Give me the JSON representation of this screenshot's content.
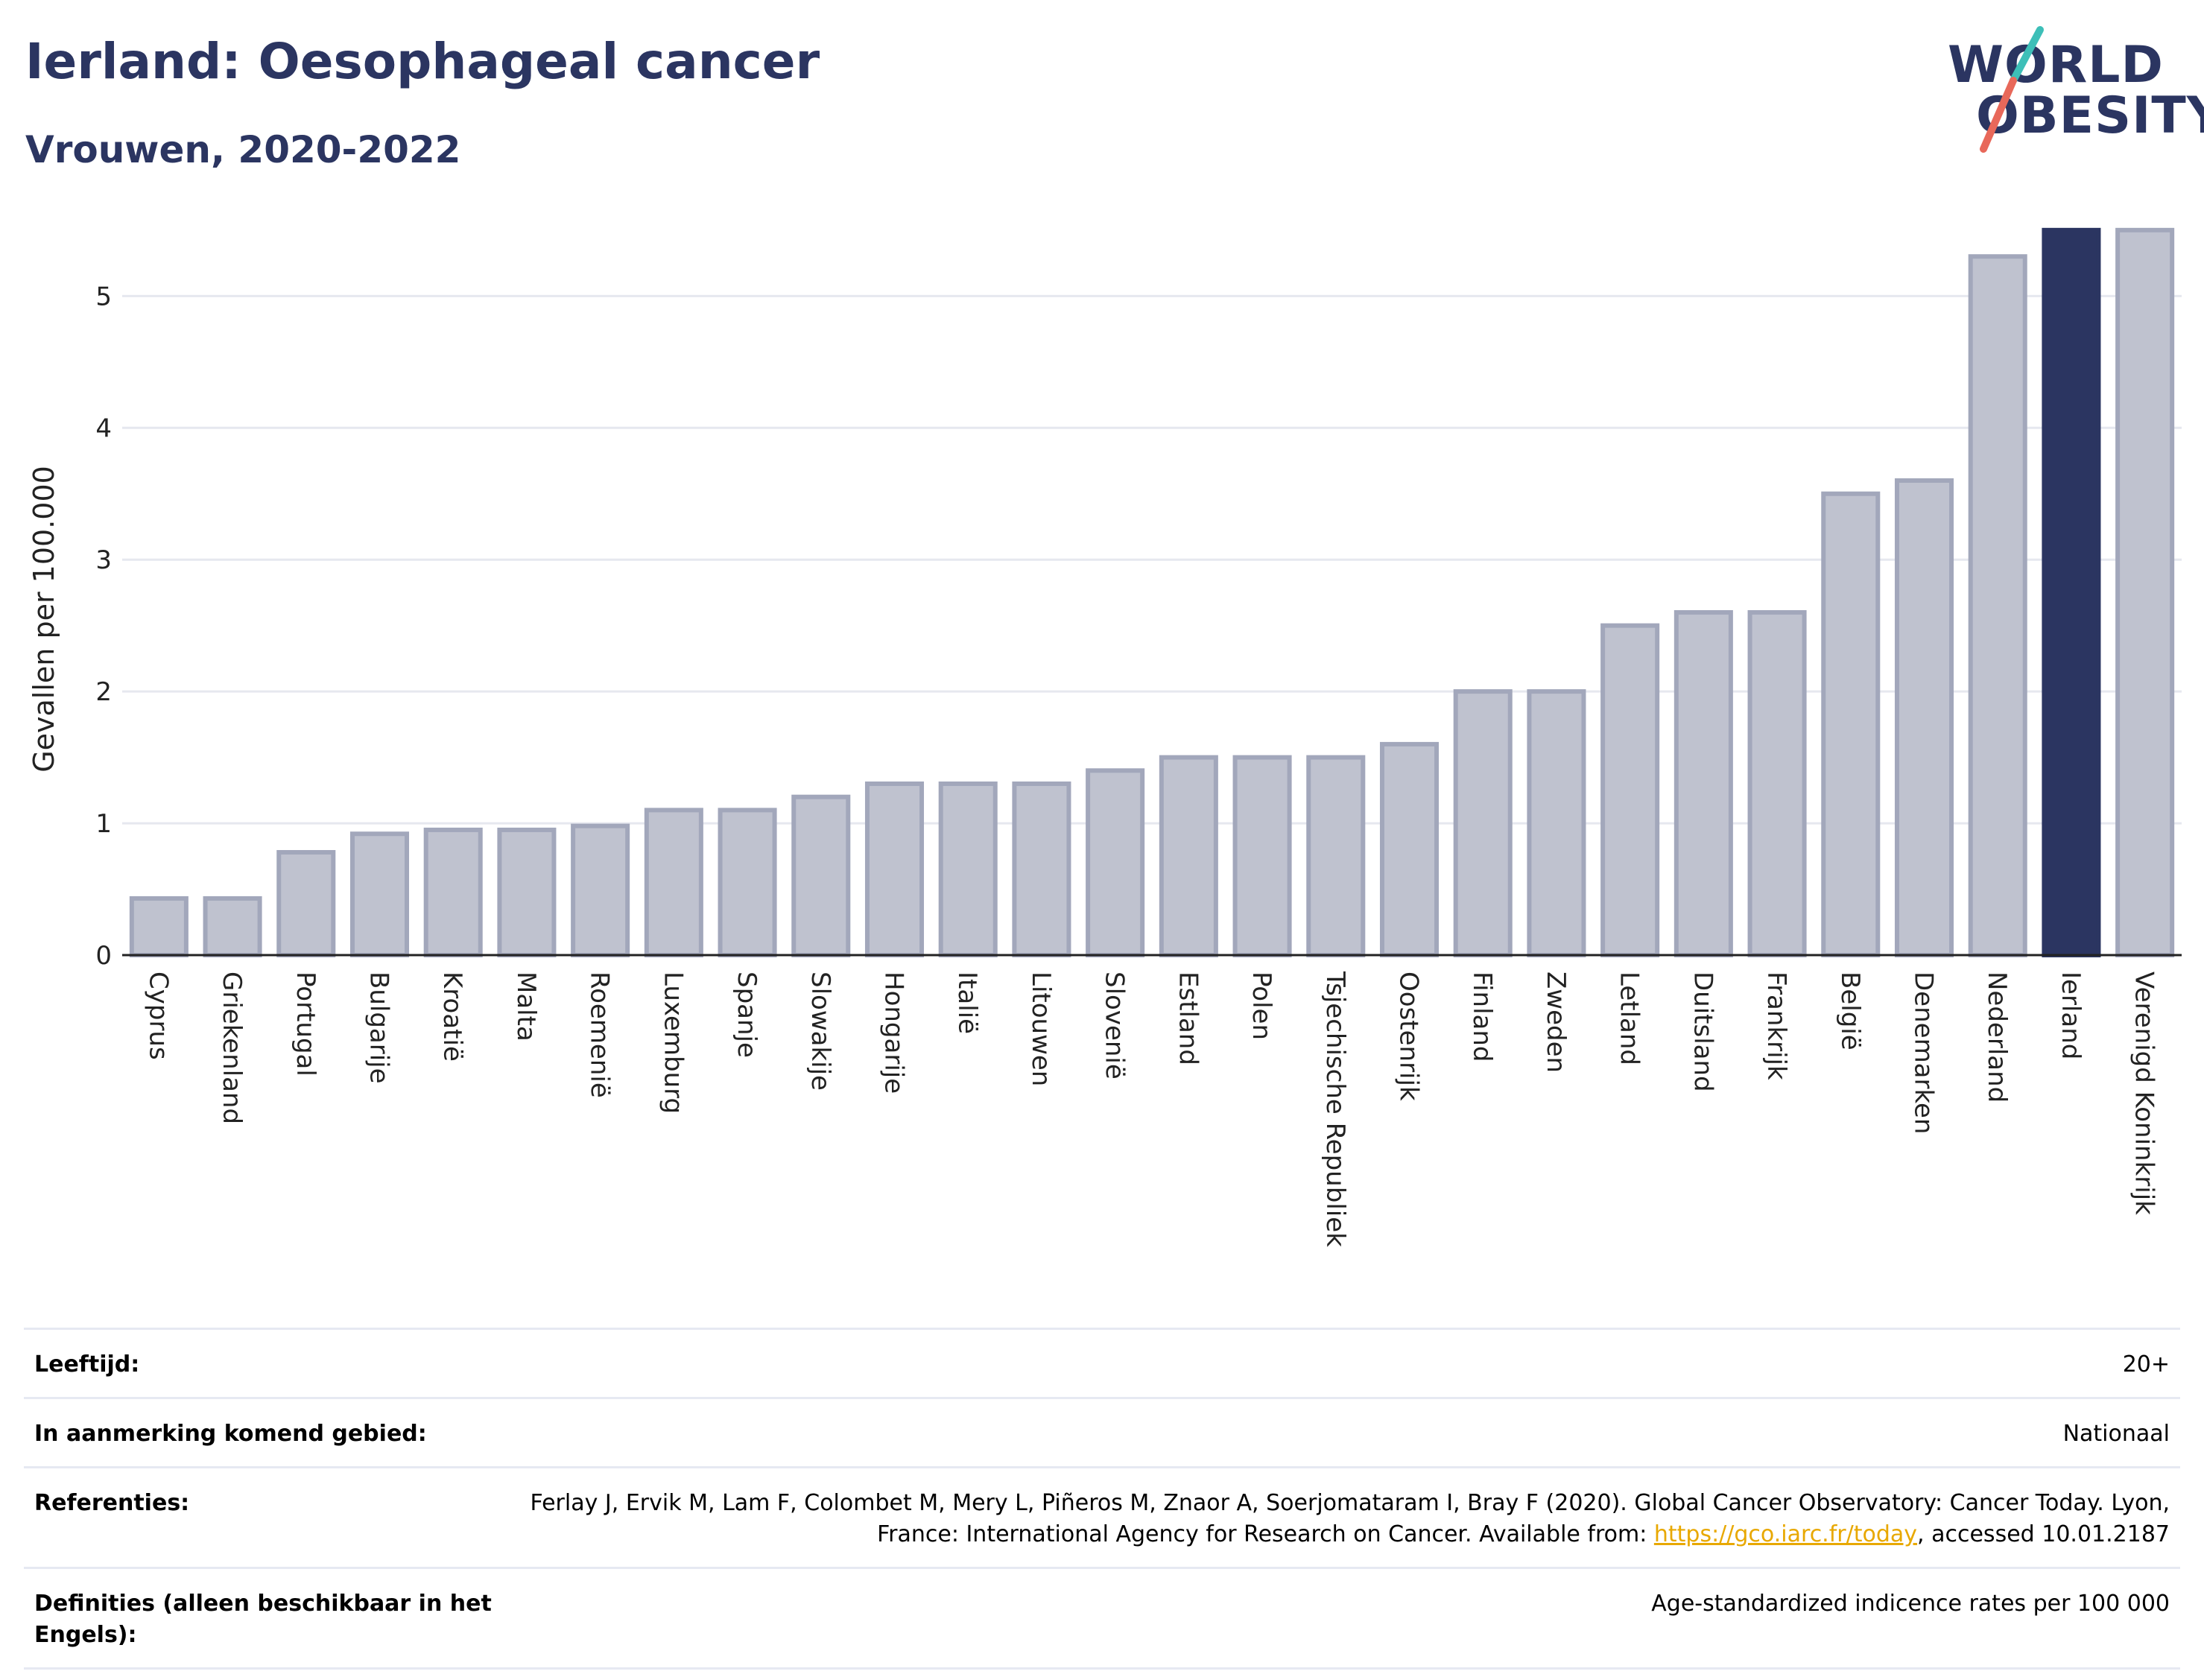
{
  "title": "Ierland: Oesophageal cancer",
  "subtitle": "Vrouwen, 2020-2022",
  "logo": {
    "line1": "WORLD",
    "line2": "OBESITY",
    "colors": {
      "text": "#2b3561",
      "slash_top": "#3dbfb8",
      "slash_bottom": "#e8685a"
    }
  },
  "chart_data": {
    "type": "bar",
    "ylabel": "Gevallen per 100.000",
    "xlabel": "",
    "ylim": [
      0,
      5.55
    ],
    "yticks": [
      0,
      1,
      2,
      3,
      4,
      5
    ],
    "grid": true,
    "highlight": "Ierland",
    "colors": {
      "default_fill": "#bfc2cf",
      "default_stroke": "#a2a7bb",
      "highlight": "#2b3561"
    },
    "categories": [
      "Cyprus",
      "Griekenland",
      "Portugal",
      "Bulgarije",
      "Kroatië",
      "Malta",
      "Roemenië",
      "Luxemburg",
      "Spanje",
      "Slowakije",
      "Hongarije",
      "Italië",
      "Litouwen",
      "Slovenië",
      "Estland",
      "Polen",
      "Tsjechische Republiek",
      "Oostenrijk",
      "Finland",
      "Zweden",
      "Letland",
      "Duitsland",
      "Frankrijk",
      "België",
      "Denemarken",
      "Nederland",
      "Ierland",
      "Verenigd Koninkrijk"
    ],
    "values": [
      0.43,
      0.43,
      0.78,
      0.92,
      0.95,
      0.95,
      0.98,
      1.1,
      1.1,
      1.2,
      1.3,
      1.3,
      1.3,
      1.4,
      1.5,
      1.5,
      1.5,
      1.6,
      2.0,
      2.0,
      2.5,
      2.6,
      2.6,
      3.5,
      3.6,
      5.3,
      5.5,
      5.5
    ]
  },
  "meta": {
    "age_label": "Leeftijd:",
    "age_value": "20+",
    "area_label": "In aanmerking komend gebied:",
    "area_value": "Nationaal",
    "ref_label": "Referenties:",
    "ref_text": "Ferlay J, Ervik M, Lam F, Colombet M, Mery L, Piñeros M, Znaor A, Soerjomataram I, Bray F (2020). Global Cancer Observatory: Cancer Today. Lyon, France: International Agency for Research on Cancer. Available from: ",
    "ref_link": "https://gco.iarc.fr/today",
    "ref_tail": ", accessed 10.01.2187",
    "def_label": "Definities (alleen beschikbaar in het Engels):",
    "def_value": "Age-standardized indicence rates per 100 000"
  }
}
